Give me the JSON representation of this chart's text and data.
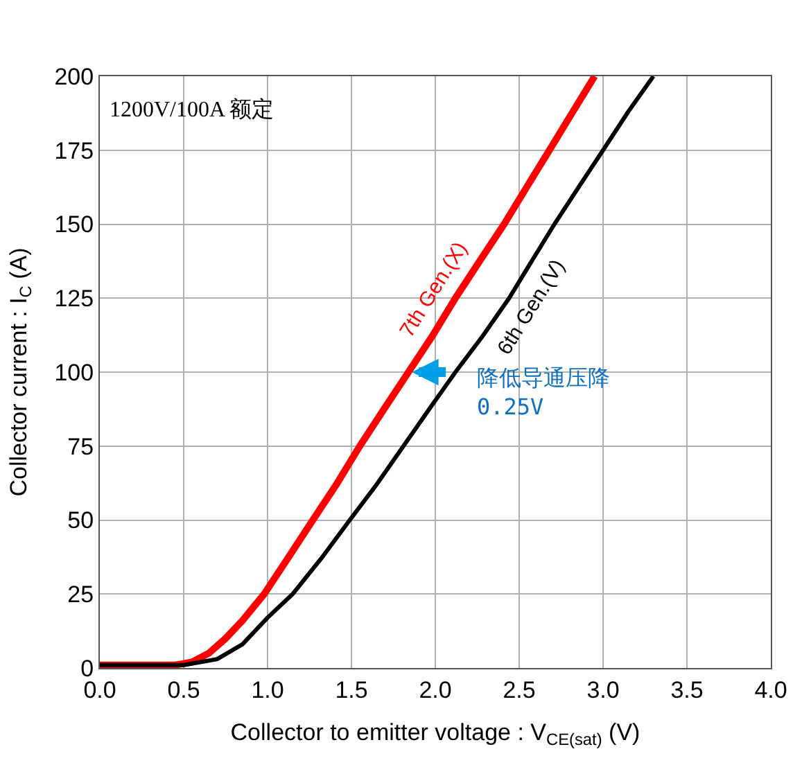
{
  "chart_data": {
    "type": "line",
    "xlabel": "Collector to emitter voltage : V$_{CE(sat)}$ (V)",
    "ylabel": "Collector current : I$_{C}$ (A)",
    "series": [
      {
        "name": "7th Gen.(X)",
        "color": "#ff0000",
        "x": [
          0.0,
          0.3,
          0.45,
          0.55,
          0.65,
          0.75,
          0.85,
          0.98,
          1.12,
          1.27,
          1.41,
          1.55,
          1.7,
          1.84,
          1.98,
          2.12,
          2.27,
          2.41,
          2.55,
          2.68,
          2.82,
          2.95
        ],
        "values": [
          1,
          1,
          1,
          2,
          5,
          10,
          16,
          25,
          37,
          50,
          62,
          75,
          88,
          100,
          112,
          125,
          138,
          150,
          163,
          175,
          188,
          200
        ]
      },
      {
        "name": "6th Gen.(V)",
        "color": "#000000",
        "x": [
          0.0,
          0.3,
          0.5,
          0.6,
          0.7,
          0.85,
          1.0,
          1.15,
          1.32,
          1.49,
          1.65,
          1.81,
          1.97,
          2.12,
          2.28,
          2.44,
          2.58,
          2.71,
          2.86,
          3.0,
          3.15,
          3.3
        ],
        "values": [
          1,
          1,
          1,
          2,
          3,
          8,
          17,
          25,
          37,
          50,
          62,
          75,
          88,
          100,
          112,
          125,
          138,
          150,
          163,
          175,
          188,
          200
        ]
      }
    ],
    "xlim": [
      0,
      4
    ],
    "ylim": [
      0,
      200
    ],
    "xticks": [
      {
        "value": 0,
        "label": "0.0"
      },
      {
        "value": 0.5,
        "label": "0.5"
      },
      {
        "value": 1,
        "label": "1.0"
      },
      {
        "value": 1.5,
        "label": "1.5"
      },
      {
        "value": 2,
        "label": "2.0"
      },
      {
        "value": 2.5,
        "label": "2.5"
      },
      {
        "value": 3,
        "label": "3.0"
      },
      {
        "value": 3.5,
        "label": "3.5"
      },
      {
        "value": 4,
        "label": "4.0"
      }
    ],
    "yticks": [
      0,
      25,
      50,
      75,
      100,
      125,
      150,
      175,
      200
    ],
    "grid": true,
    "legend": false,
    "marker": "none",
    "line_style": "solid",
    "annotations": [
      "1200V/100A 额定",
      {
        "text": "降低导通压降\n0.25V",
        "x": 1.86,
        "y": 100
      }
    ]
  }
}
